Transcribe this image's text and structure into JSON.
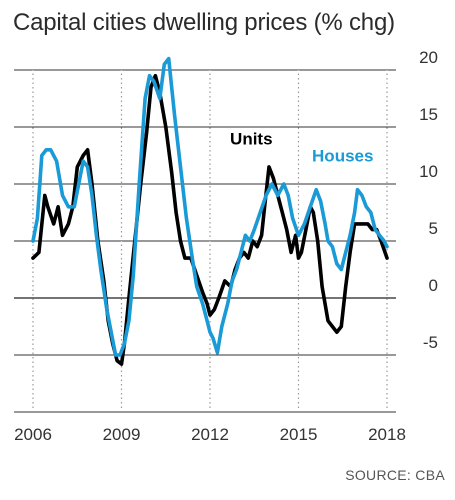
{
  "chart_data": {
    "type": "line",
    "title": "Capital cities dwelling prices (% chg)",
    "xlabel": "",
    "ylabel": "",
    "x_ticks": [
      "2006",
      "2009",
      "2012",
      "2015",
      "2018"
    ],
    "y_ticks": [
      "20",
      "15",
      "10",
      "5",
      "0",
      "-5"
    ],
    "xlim": [
      2006.0,
      2018.3
    ],
    "ylim": [
      -10,
      21
    ],
    "grid": true,
    "series": [
      {
        "name": "Units",
        "color": "#000000",
        "x": [
          2006.0,
          2006.2,
          2006.4,
          2006.5,
          2006.7,
          2006.85,
          2007.0,
          2007.2,
          2007.35,
          2007.5,
          2007.7,
          2007.85,
          2008.0,
          2008.2,
          2008.4,
          2008.55,
          2008.7,
          2008.85,
          2009.0,
          2009.1,
          2009.25,
          2009.45,
          2009.65,
          2009.85,
          2010.0,
          2010.15,
          2010.3,
          2010.5,
          2010.7,
          2010.85,
          2011.0,
          2011.15,
          2011.35,
          2011.55,
          2011.75,
          2011.9,
          2012.0,
          2012.15,
          2012.3,
          2012.5,
          2012.7,
          2012.85,
          2013.0,
          2013.15,
          2013.3,
          2013.45,
          2013.6,
          2013.75,
          2013.85,
          2014.0,
          2014.15,
          2014.3,
          2014.45,
          2014.6,
          2014.75,
          2014.9,
          2015.0,
          2015.1,
          2015.25,
          2015.4,
          2015.5,
          2015.65,
          2015.8,
          2016.0,
          2016.15,
          2016.3,
          2016.45,
          2016.6,
          2016.75,
          2016.9,
          2017.05,
          2017.2,
          2017.35,
          2017.5,
          2017.65,
          2017.8,
          2018.0
        ],
        "y": [
          3.5,
          4.0,
          9.0,
          8.0,
          6.5,
          8.0,
          5.5,
          6.5,
          8.0,
          11.5,
          12.5,
          13.0,
          10.0,
          5.0,
          1.5,
          -2.0,
          -4.0,
          -5.5,
          -5.8,
          -4.0,
          0.0,
          5.0,
          10.0,
          14.5,
          18.5,
          19.5,
          18.0,
          15.0,
          11.0,
          7.5,
          5.0,
          3.5,
          3.5,
          2.0,
          0.5,
          -0.5,
          -1.5,
          -1.0,
          0.0,
          1.5,
          1.0,
          2.5,
          3.5,
          4.0,
          3.5,
          5.0,
          4.5,
          5.5,
          8.0,
          11.5,
          10.5,
          9.0,
          7.5,
          6.0,
          4.0,
          5.5,
          3.5,
          4.0,
          6.0,
          8.0,
          7.5,
          5.0,
          1.0,
          -2.0,
          -2.5,
          -3.0,
          -2.5,
          1.0,
          4.0,
          6.5,
          6.5,
          6.5,
          6.5,
          6.0,
          6.0,
          5.0,
          3.5
        ]
      },
      {
        "name": "Houses",
        "color": "#1a9ad6",
        "x": [
          2006.0,
          2006.15,
          2006.3,
          2006.45,
          2006.6,
          2006.8,
          2007.0,
          2007.2,
          2007.4,
          2007.55,
          2007.7,
          2007.85,
          2008.0,
          2008.15,
          2008.3,
          2008.5,
          2008.65,
          2008.8,
          2008.95,
          2009.1,
          2009.25,
          2009.4,
          2009.6,
          2009.8,
          2009.95,
          2010.1,
          2010.3,
          2010.45,
          2010.6,
          2010.8,
          2011.0,
          2011.2,
          2011.4,
          2011.55,
          2011.75,
          2011.9,
          2012.0,
          2012.1,
          2012.25,
          2012.4,
          2012.6,
          2012.75,
          2012.9,
          2013.05,
          2013.2,
          2013.35,
          2013.5,
          2013.7,
          2013.9,
          2014.1,
          2014.3,
          2014.5,
          2014.65,
          2014.8,
          2015.0,
          2015.2,
          2015.4,
          2015.6,
          2015.75,
          2015.9,
          2016.0,
          2016.15,
          2016.3,
          2016.45,
          2016.6,
          2016.75,
          2016.9,
          2017.0,
          2017.15,
          2017.3,
          2017.45,
          2017.6,
          2017.75,
          2017.9,
          2018.0
        ],
        "y": [
          5.0,
          7.0,
          12.5,
          13.0,
          13.0,
          12.0,
          9.0,
          8.0,
          8.0,
          10.0,
          12.0,
          11.5,
          9.0,
          5.5,
          2.5,
          -1.0,
          -3.0,
          -5.0,
          -5.0,
          -4.0,
          -2.0,
          2.0,
          10.0,
          17.5,
          19.5,
          19.0,
          17.5,
          20.5,
          21.0,
          16.0,
          11.5,
          7.0,
          3.5,
          1.0,
          -0.5,
          -2.0,
          -3.0,
          -3.5,
          -4.8,
          -2.5,
          -0.5,
          1.5,
          2.5,
          4.0,
          5.5,
          5.0,
          6.0,
          7.5,
          9.0,
          10.0,
          9.0,
          10.0,
          9.0,
          7.0,
          5.5,
          6.5,
          8.0,
          9.5,
          8.5,
          6.5,
          5.0,
          4.5,
          3.0,
          2.5,
          4.0,
          5.5,
          7.5,
          9.5,
          9.0,
          8.0,
          7.5,
          6.0,
          5.5,
          5.0,
          4.5
        ]
      }
    ],
    "annotations": [
      {
        "text": "Units",
        "color": "#000000",
        "x": 2013.4,
        "y": 14.0
      },
      {
        "text": "Houses",
        "color": "#1a9ad6",
        "x": 2016.5,
        "y": 12.5
      }
    ],
    "source": "SOURCE: CBA"
  }
}
